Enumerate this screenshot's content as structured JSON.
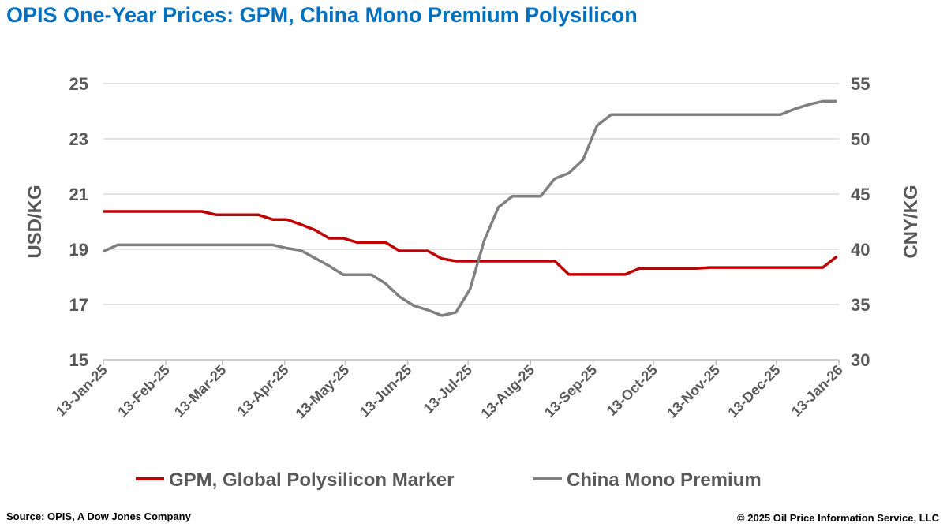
{
  "title": "OPIS One-Year Prices: GPM, China Mono Premium Polysilicon",
  "footer": {
    "source": "Source: OPIS, A Dow Jones Company",
    "copyright": "© 2025 Oil Price Information Service, LLC"
  },
  "chart_data": {
    "type": "line",
    "title": "OPIS One-Year Prices: GPM, China Mono Premium Polysilicon",
    "ylabel": "USD/KG",
    "y2label": "CNY/KG",
    "ylim": [
      15,
      25
    ],
    "yticks": [
      15,
      17,
      19,
      21,
      23,
      25
    ],
    "y2lim": [
      30,
      55
    ],
    "y2ticks": [
      30,
      35,
      40,
      45,
      50,
      55
    ],
    "xlim": [
      "2025-01-13",
      "2026-01-13"
    ],
    "xticks": [
      {
        "date": "2025-01-13",
        "label": "13-Jan-25"
      },
      {
        "date": "2025-02-13",
        "label": "13-Feb-25"
      },
      {
        "date": "2025-03-13",
        "label": "13-Mar-25"
      },
      {
        "date": "2025-04-13",
        "label": "13-Apr-25"
      },
      {
        "date": "2025-05-13",
        "label": "13-May-25"
      },
      {
        "date": "2025-06-13",
        "label": "13-Jun-25"
      },
      {
        "date": "2025-07-13",
        "label": "13-Jul-25"
      },
      {
        "date": "2025-08-13",
        "label": "13-Aug-25"
      },
      {
        "date": "2025-09-13",
        "label": "13-Sep-25"
      },
      {
        "date": "2025-10-13",
        "label": "13-Oct-25"
      },
      {
        "date": "2025-11-13",
        "label": "13-Nov-25"
      },
      {
        "date": "2025-12-13",
        "label": "13-Dec-25"
      },
      {
        "date": "2026-01-13",
        "label": "13-Jan-26"
      }
    ],
    "grid": "horizontal",
    "legend_position": "bottom",
    "x": [
      "2025-01-13",
      "2025-01-20",
      "2025-01-27",
      "2025-02-03",
      "2025-02-10",
      "2025-02-17",
      "2025-02-24",
      "2025-03-03",
      "2025-03-10",
      "2025-03-17",
      "2025-03-24",
      "2025-03-31",
      "2025-04-07",
      "2025-04-14",
      "2025-04-21",
      "2025-04-28",
      "2025-05-05",
      "2025-05-12",
      "2025-05-19",
      "2025-05-26",
      "2025-06-02",
      "2025-06-09",
      "2025-06-16",
      "2025-06-23",
      "2025-06-30",
      "2025-07-07",
      "2025-07-14",
      "2025-07-21",
      "2025-07-28",
      "2025-08-04",
      "2025-08-11",
      "2025-08-18",
      "2025-08-25",
      "2025-09-01",
      "2025-09-08",
      "2025-09-15",
      "2025-09-22",
      "2025-09-29",
      "2025-10-06",
      "2025-10-13",
      "2025-10-20",
      "2025-10-27",
      "2025-11-03",
      "2025-11-10",
      "2025-11-17",
      "2025-11-24",
      "2025-12-01",
      "2025-12-08",
      "2025-12-15",
      "2025-12-22",
      "2025-12-29",
      "2026-01-05",
      "2026-01-12"
    ],
    "series": [
      {
        "name": "GPM, Global Polysilicon Marker",
        "axis": "left",
        "color": "#C00000",
        "values": [
          20.37,
          20.37,
          20.37,
          20.37,
          20.37,
          20.37,
          20.37,
          20.37,
          20.25,
          20.25,
          20.25,
          20.25,
          20.08,
          20.08,
          19.9,
          19.7,
          19.4,
          19.4,
          19.25,
          19.25,
          19.25,
          18.94,
          18.94,
          18.94,
          18.66,
          18.57,
          18.57,
          18.57,
          18.57,
          18.57,
          18.57,
          18.57,
          18.57,
          18.09,
          18.09,
          18.09,
          18.09,
          18.09,
          18.31,
          18.31,
          18.31,
          18.31,
          18.31,
          18.34,
          18.34,
          18.34,
          18.34,
          18.34,
          18.34,
          18.34,
          18.34,
          18.34,
          18.74
        ]
      },
      {
        "name": "China Mono Premium",
        "axis": "right",
        "color": "#808080",
        "values": [
          39.8,
          40.4,
          40.4,
          40.4,
          40.4,
          40.4,
          40.4,
          40.4,
          40.4,
          40.4,
          40.4,
          40.4,
          40.4,
          40.1,
          39.9,
          39.2,
          38.5,
          37.7,
          37.7,
          37.7,
          36.9,
          35.7,
          34.9,
          34.5,
          34.0,
          34.3,
          36.4,
          40.8,
          43.8,
          44.8,
          44.8,
          44.8,
          46.4,
          46.9,
          48.1,
          51.2,
          52.2,
          52.2,
          52.2,
          52.2,
          52.2,
          52.2,
          52.2,
          52.2,
          52.2,
          52.2,
          52.2,
          52.2,
          52.2,
          52.7,
          53.1,
          53.4,
          53.4
        ]
      }
    ]
  }
}
